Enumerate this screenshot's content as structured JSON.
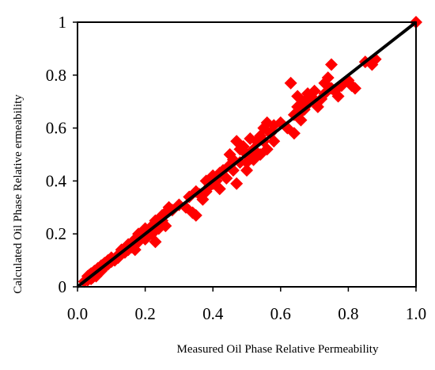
{
  "chart_data": {
    "type": "scatter",
    "xlabel": "Measured Oil Phase Relative Permeability",
    "ylabel": "Calculated Oil Phase Relative ermeability",
    "xlim": [
      0,
      1
    ],
    "ylim": [
      0,
      1
    ],
    "x_ticks": [
      "0.0",
      "0.2",
      "0.4",
      "0.6",
      "0.8",
      "1.0"
    ],
    "y_ticks": [
      "0",
      "0.2",
      "0.4",
      "0.6",
      "0.8",
      "1"
    ],
    "grid": false,
    "legend": "none",
    "colors": {
      "points": "#ff0000",
      "line": "#000000",
      "frame": "#000000"
    },
    "reference_line": {
      "x": [
        0,
        1
      ],
      "y": [
        0,
        1
      ]
    },
    "series": [
      {
        "values": [
          [
            0.02,
            0.02
          ],
          [
            0.03,
            0.04
          ],
          [
            0.03,
            0.025
          ],
          [
            0.035,
            0.045
          ],
          [
            0.04,
            0.03
          ],
          [
            0.04,
            0.05
          ],
          [
            0.045,
            0.035
          ],
          [
            0.05,
            0.06
          ],
          [
            0.05,
            0.045
          ],
          [
            0.055,
            0.04
          ],
          [
            0.06,
            0.07
          ],
          [
            0.06,
            0.05
          ],
          [
            0.065,
            0.055
          ],
          [
            0.07,
            0.08
          ],
          [
            0.07,
            0.06
          ],
          [
            0.075,
            0.07
          ],
          [
            0.08,
            0.09
          ],
          [
            0.08,
            0.075
          ],
          [
            0.09,
            0.1
          ],
          [
            0.09,
            0.085
          ],
          [
            0.1,
            0.11
          ],
          [
            0.1,
            0.095
          ],
          [
            0.11,
            0.1
          ],
          [
            0.12,
            0.12
          ],
          [
            0.12,
            0.11
          ],
          [
            0.13,
            0.14
          ],
          [
            0.14,
            0.13
          ],
          [
            0.15,
            0.16
          ],
          [
            0.15,
            0.14
          ],
          [
            0.16,
            0.15
          ],
          [
            0.17,
            0.18
          ],
          [
            0.17,
            0.14
          ],
          [
            0.18,
            0.2
          ],
          [
            0.18,
            0.17
          ],
          [
            0.19,
            0.19
          ],
          [
            0.2,
            0.22
          ],
          [
            0.2,
            0.2
          ],
          [
            0.2,
            0.18
          ],
          [
            0.21,
            0.21
          ],
          [
            0.22,
            0.23
          ],
          [
            0.22,
            0.2
          ],
          [
            0.23,
            0.25
          ],
          [
            0.23,
            0.17
          ],
          [
            0.24,
            0.24
          ],
          [
            0.24,
            0.22
          ],
          [
            0.25,
            0.27
          ],
          [
            0.25,
            0.25
          ],
          [
            0.26,
            0.23
          ],
          [
            0.26,
            0.28
          ],
          [
            0.27,
            0.3
          ],
          [
            0.28,
            0.29
          ],
          [
            0.3,
            0.31
          ],
          [
            0.32,
            0.3
          ],
          [
            0.33,
            0.34
          ],
          [
            0.34,
            0.28
          ],
          [
            0.35,
            0.36
          ],
          [
            0.35,
            0.27
          ],
          [
            0.36,
            0.35
          ],
          [
            0.37,
            0.33
          ],
          [
            0.38,
            0.4
          ],
          [
            0.38,
            0.36
          ],
          [
            0.39,
            0.38
          ],
          [
            0.4,
            0.42
          ],
          [
            0.4,
            0.39
          ],
          [
            0.41,
            0.4
          ],
          [
            0.42,
            0.43
          ],
          [
            0.42,
            0.37
          ],
          [
            0.43,
            0.44
          ],
          [
            0.44,
            0.41
          ],
          [
            0.45,
            0.5
          ],
          [
            0.45,
            0.46
          ],
          [
            0.46,
            0.48
          ],
          [
            0.46,
            0.44
          ],
          [
            0.47,
            0.39
          ],
          [
            0.47,
            0.55
          ],
          [
            0.48,
            0.47
          ],
          [
            0.48,
            0.52
          ],
          [
            0.49,
            0.53
          ],
          [
            0.5,
            0.5
          ],
          [
            0.5,
            0.47
          ],
          [
            0.5,
            0.44
          ],
          [
            0.51,
            0.56
          ],
          [
            0.52,
            0.52
          ],
          [
            0.52,
            0.48
          ],
          [
            0.53,
            0.55
          ],
          [
            0.54,
            0.5
          ],
          [
            0.54,
            0.57
          ],
          [
            0.55,
            0.6
          ],
          [
            0.55,
            0.55
          ],
          [
            0.56,
            0.62
          ],
          [
            0.56,
            0.52
          ],
          [
            0.57,
            0.58
          ],
          [
            0.58,
            0.61
          ],
          [
            0.58,
            0.55
          ],
          [
            0.6,
            0.62
          ],
          [
            0.62,
            0.6
          ],
          [
            0.63,
            0.77
          ],
          [
            0.64,
            0.65
          ],
          [
            0.64,
            0.58
          ],
          [
            0.65,
            0.72
          ],
          [
            0.65,
            0.68
          ],
          [
            0.66,
            0.63
          ],
          [
            0.66,
            0.66
          ],
          [
            0.67,
            0.7
          ],
          [
            0.67,
            0.67
          ],
          [
            0.68,
            0.73
          ],
          [
            0.68,
            0.69
          ],
          [
            0.69,
            0.72
          ],
          [
            0.7,
            0.74
          ],
          [
            0.7,
            0.7
          ],
          [
            0.71,
            0.68
          ],
          [
            0.72,
            0.71
          ],
          [
            0.73,
            0.77
          ],
          [
            0.73,
            0.73
          ],
          [
            0.74,
            0.79
          ],
          [
            0.75,
            0.75
          ],
          [
            0.75,
            0.84
          ],
          [
            0.76,
            0.74
          ],
          [
            0.77,
            0.72
          ],
          [
            0.78,
            0.76
          ],
          [
            0.8,
            0.78
          ],
          [
            0.81,
            0.76
          ],
          [
            0.82,
            0.75
          ],
          [
            0.85,
            0.85
          ],
          [
            0.87,
            0.84
          ],
          [
            0.88,
            0.86
          ],
          [
            1.0,
            1.0
          ]
        ]
      }
    ]
  }
}
